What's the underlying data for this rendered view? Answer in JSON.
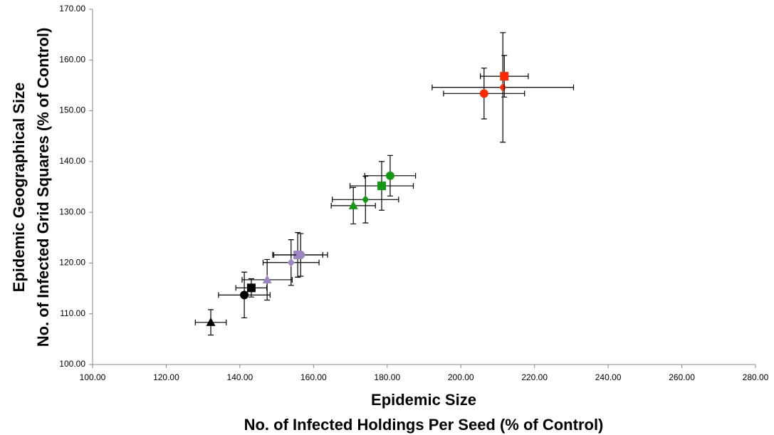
{
  "chart_data": {
    "type": "scatter",
    "x_label": [
      "Epidemic Size",
      "No. of Infected Holdings Per Seed (% of Control)"
    ],
    "y_label": [
      "Epidemic Geographical Size",
      "No. of Infected Grid Squares (% of Control)"
    ],
    "xlim": [
      100,
      280
    ],
    "ylim": [
      100,
      170
    ],
    "xticks": [
      {
        "value": 100,
        "label": "100.00"
      },
      {
        "value": 120,
        "label": "120.00"
      },
      {
        "value": 140,
        "label": "140.00"
      },
      {
        "value": 160,
        "label": "160.00"
      },
      {
        "value": 180,
        "label": "180.00"
      },
      {
        "value": 200,
        "label": "200.00"
      },
      {
        "value": 220,
        "label": "220.00"
      },
      {
        "value": 240,
        "label": "240.00"
      },
      {
        "value": 260,
        "label": "260.00"
      },
      {
        "value": 280,
        "label": "280.00"
      }
    ],
    "yticks": [
      {
        "value": 100,
        "label": "100.00"
      },
      {
        "value": 110,
        "label": "110.00"
      },
      {
        "value": 120,
        "label": "120.00"
      },
      {
        "value": 130,
        "label": "130.00"
      },
      {
        "value": 140,
        "label": "140.00"
      },
      {
        "value": 150,
        "label": "150.00"
      },
      {
        "value": 160,
        "label": "160.00"
      },
      {
        "value": 170,
        "label": "170.00"
      }
    ],
    "points": [
      {
        "x": 132.1,
        "y": 108.3,
        "xerr": 4.2,
        "yerr": 2.5,
        "color": "#000000",
        "marker": "triangle"
      },
      {
        "x": 141.2,
        "y": 113.7,
        "xerr": 7,
        "yerr": 4.5,
        "color": "#000000",
        "marker": "circle"
      },
      {
        "x": 143.1,
        "y": 115.1,
        "xerr": 4.2,
        "yerr": 1.8,
        "color": "#000000",
        "marker": "square"
      },
      {
        "x": 147.4,
        "y": 116.7,
        "xerr": 6.8,
        "yerr": 4,
        "color": "#9b86c2",
        "marker": "triangle"
      },
      {
        "x": 153.9,
        "y": 120.1,
        "xerr": 7.6,
        "yerr": 4.5,
        "color": "#9b86c2",
        "marker": "diamond"
      },
      {
        "x": 155.7,
        "y": 121.6,
        "xerr": 6.8,
        "yerr": 4.4,
        "color": "#9b86c2",
        "marker": "square"
      },
      {
        "x": 156.5,
        "y": 121.6,
        "xerr": 7.3,
        "yerr": 4.2,
        "color": "#9b86c2",
        "marker": "circle"
      },
      {
        "x": 170.8,
        "y": 131.3,
        "xerr": 6,
        "yerr": 3.6,
        "color": "#139a13",
        "marker": "triangle"
      },
      {
        "x": 174.1,
        "y": 132.5,
        "xerr": 9,
        "yerr": 4.6,
        "color": "#139a13",
        "marker": "diamond"
      },
      {
        "x": 178.5,
        "y": 135.2,
        "xerr": 8.6,
        "yerr": 4.8,
        "color": "#139a13",
        "marker": "square"
      },
      {
        "x": 180.8,
        "y": 137.2,
        "xerr": 6.9,
        "yerr": 4,
        "color": "#139a13",
        "marker": "circle"
      },
      {
        "x": 206.3,
        "y": 153.4,
        "xerr": 11,
        "yerr": 5,
        "color": "#ff2a00",
        "marker": "circle"
      },
      {
        "x": 211.4,
        "y": 154.6,
        "xerr": 19.2,
        "yerr": 10.8,
        "color": "#ff2a00",
        "marker": "diamond"
      },
      {
        "x": 211.8,
        "y": 156.8,
        "xerr": 6.5,
        "yerr": 4.1,
        "color": "#ff2a00",
        "marker": "square"
      }
    ]
  }
}
